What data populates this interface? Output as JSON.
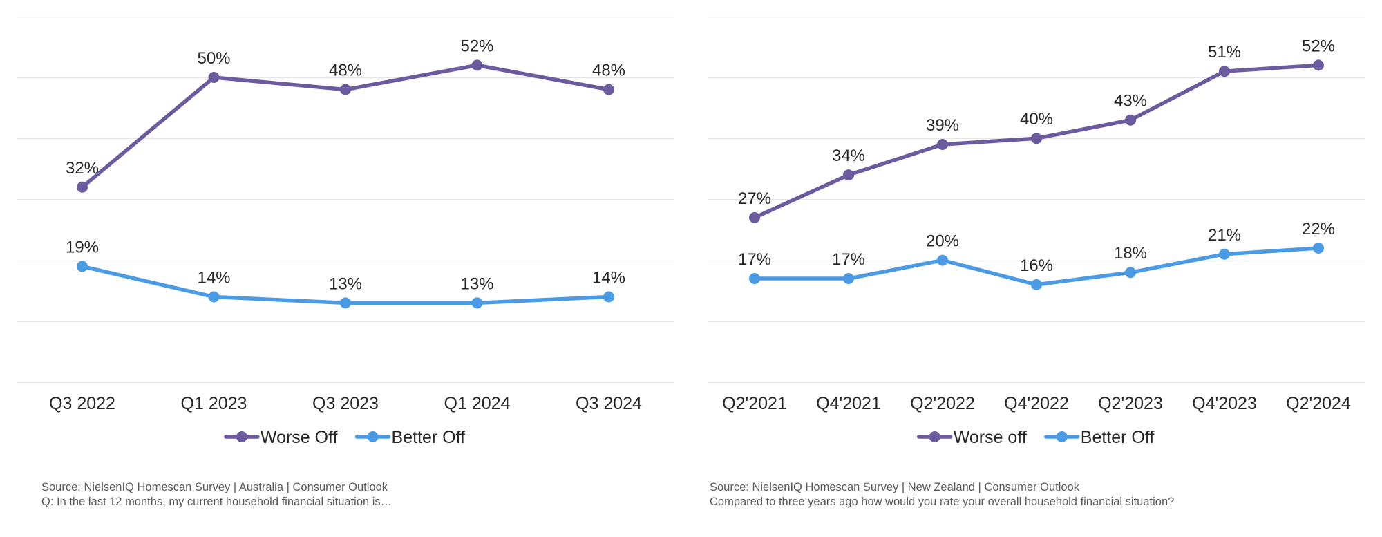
{
  "chart_data": [
    {
      "type": "line",
      "title": "",
      "xlabel": "",
      "ylabel": "",
      "categories": [
        "Q3 2022",
        "Q1 2023",
        "Q3 2023",
        "Q1 2024",
        "Q3 2024"
      ],
      "series": [
        {
          "name": "Worse Off",
          "values": [
            32,
            50,
            48,
            52,
            48
          ],
          "labels": [
            "32%",
            "50%",
            "48%",
            "52%",
            "48%"
          ],
          "color": "#6B5B9E"
        },
        {
          "name": "Better Off",
          "values": [
            19,
            14,
            13,
            13,
            14
          ],
          "labels": [
            "19%",
            "14%",
            "13%",
            "13%",
            "14%"
          ],
          "color": "#4A9BE4"
        }
      ],
      "ylim": [
        0,
        60
      ],
      "grid": true,
      "legend_position": "bottom",
      "source_lines": [
        "Source: NielsenIQ Homescan Survey | Australia | Consumer Outlook",
        "Q: In the last 12 months, my current household financial situation is…"
      ]
    },
    {
      "type": "line",
      "title": "",
      "xlabel": "",
      "ylabel": "",
      "categories": [
        "Q2'2021",
        "Q4'2021",
        "Q2'2022",
        "Q4'2022",
        "Q2'2023",
        "Q4'2023",
        "Q2'2024"
      ],
      "series": [
        {
          "name": "Worse off",
          "values": [
            27,
            34,
            39,
            40,
            43,
            51,
            52
          ],
          "labels": [
            "27%",
            "34%",
            "39%",
            "40%",
            "43%",
            "51%",
            "52%"
          ],
          "color": "#6B5B9E"
        },
        {
          "name": "Better Off",
          "values": [
            17,
            17,
            20,
            16,
            18,
            21,
            22
          ],
          "labels": [
            "17%",
            "17%",
            "20%",
            "16%",
            "18%",
            "21%",
            "22%"
          ],
          "color": "#4A9BE4"
        }
      ],
      "ylim": [
        0,
        60
      ],
      "grid": true,
      "legend_position": "bottom",
      "source_lines": [
        "Source: NielsenIQ Homescan Survey | New Zealand | Consumer Outlook",
        "Compared to three years ago how would you rate your overall household financial situation?"
      ]
    }
  ]
}
